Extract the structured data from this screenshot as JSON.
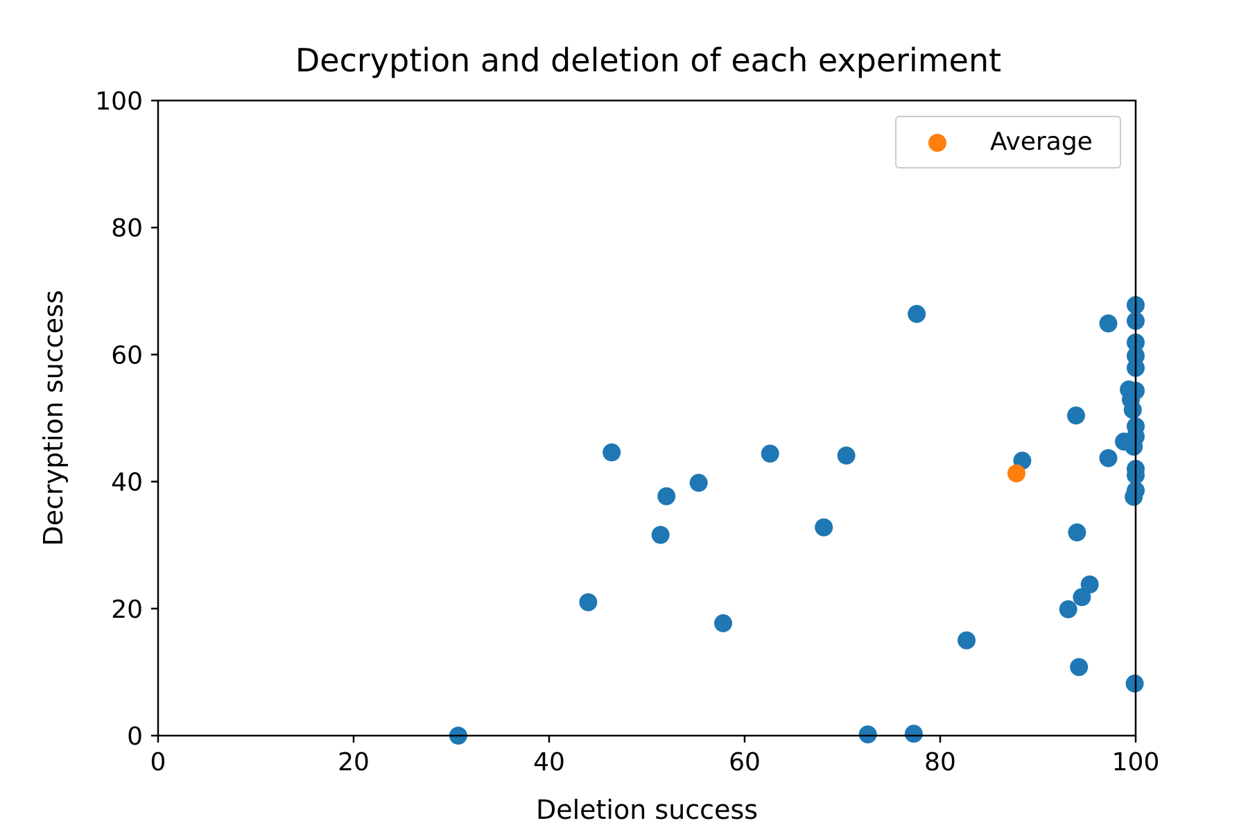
{
  "chart_data": {
    "type": "scatter",
    "title": "Decryption and deletion of each experiment",
    "xlabel": "Deletion success",
    "ylabel": "Decryption success",
    "xlim": [
      0,
      100
    ],
    "ylim": [
      0,
      100
    ],
    "xticks": [
      0,
      20,
      40,
      60,
      80,
      100
    ],
    "yticks": [
      0,
      20,
      40,
      60,
      80,
      100
    ],
    "xtick_labels": [
      "0",
      "20",
      "40",
      "60",
      "80",
      "100"
    ],
    "ytick_labels": [
      "0",
      "20",
      "40",
      "60",
      "80",
      "100"
    ],
    "grid": false,
    "legend_position": "top-right",
    "series": [
      {
        "color": "#1f77b4",
        "points": [
          [
            30.7,
            0.0
          ],
          [
            44.0,
            21.0
          ],
          [
            46.4,
            44.6
          ],
          [
            51.4,
            31.6
          ],
          [
            52.0,
            37.7
          ],
          [
            55.3,
            39.8
          ],
          [
            57.8,
            17.7
          ],
          [
            62.6,
            44.4
          ],
          [
            68.1,
            32.8
          ],
          [
            70.4,
            44.1
          ],
          [
            72.6,
            0.2
          ],
          [
            77.3,
            0.3
          ],
          [
            77.6,
            66.4
          ],
          [
            82.7,
            15.0
          ],
          [
            88.4,
            43.3
          ],
          [
            93.1,
            19.9
          ],
          [
            93.9,
            50.4
          ],
          [
            94.0,
            32.0
          ],
          [
            94.2,
            10.8
          ],
          [
            94.5,
            21.8
          ],
          [
            95.3,
            23.8
          ],
          [
            97.2,
            43.7
          ],
          [
            97.2,
            64.9
          ],
          [
            98.8,
            46.3
          ],
          [
            99.3,
            54.5
          ],
          [
            99.5,
            52.9
          ],
          [
            99.7,
            51.3
          ],
          [
            99.8,
            37.6
          ],
          [
            99.8,
            45.5
          ],
          [
            99.9,
            8.2
          ],
          [
            100.0,
            67.8
          ],
          [
            100.0,
            65.3
          ],
          [
            100.0,
            61.9
          ],
          [
            100.0,
            59.8
          ],
          [
            100.0,
            57.9
          ],
          [
            100.0,
            54.3
          ],
          [
            100.0,
            48.7
          ],
          [
            100.0,
            47.1
          ],
          [
            100.0,
            42.0
          ],
          [
            100.0,
            41.0
          ],
          [
            100.0,
            38.6
          ]
        ]
      },
      {
        "name": "Average",
        "color": "#ff7f0e",
        "points": [
          [
            87.8,
            41.3
          ]
        ]
      }
    ]
  }
}
